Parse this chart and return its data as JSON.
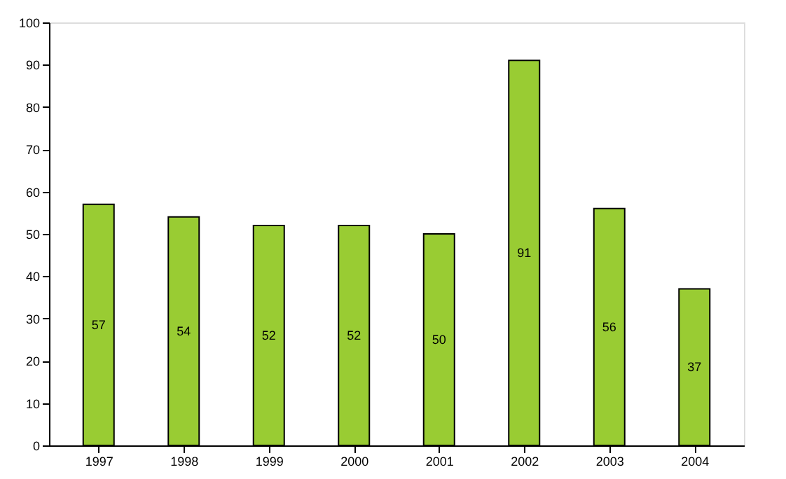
{
  "chart_data": {
    "type": "bar",
    "categories": [
      "1997",
      "1998",
      "1999",
      "2000",
      "2001",
      "2002",
      "2003",
      "2004"
    ],
    "values": [
      57,
      54,
      52,
      52,
      50,
      91,
      56,
      37
    ],
    "color": "#99cc33",
    "ylim": [
      0,
      100
    ],
    "yticks": [
      0,
      10,
      20,
      30,
      40,
      50,
      60,
      70,
      80,
      90,
      100
    ],
    "grid": false,
    "data_labels": true
  }
}
